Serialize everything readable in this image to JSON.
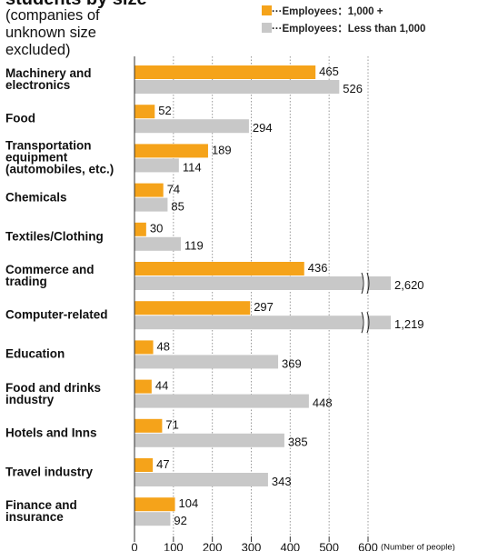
{
  "chart_data": {
    "type": "bar",
    "orientation": "horizontal",
    "title": "students by size",
    "subtitle": "(companies of unknown size excluded)",
    "x_label": "(Number of people)",
    "categories": [
      "Machinery and electronics",
      "Food",
      "Transportation equipment (automobiles, etc.)",
      "Chemicals",
      "Textiles/Clothing",
      "Commerce and trading",
      "Computer-related",
      "Education",
      "Food and drinks industry",
      "Hotels and Inns",
      "Travel industry",
      "Finance and insurance"
    ],
    "series": [
      {
        "name": "Employees：1,000 +",
        "color": "#f5a31a",
        "values": [
          465,
          52,
          189,
          74,
          30,
          436,
          297,
          48,
          44,
          71,
          47,
          104
        ]
      },
      {
        "name": "Employees：Less than 1,000",
        "color": "#c8c8c8",
        "values": [
          526,
          294,
          114,
          85,
          119,
          2620,
          1219,
          369,
          448,
          385,
          343,
          92
        ],
        "value_labels": [
          "526",
          "294",
          "114",
          "85",
          "119",
          "2,620",
          "1,219",
          "369",
          "448",
          "385",
          "343",
          "92"
        ]
      }
    ],
    "xlim": [
      0,
      600
    ],
    "xticks": [
      0,
      100,
      200,
      300,
      400,
      500,
      600
    ],
    "grid": true
  }
}
